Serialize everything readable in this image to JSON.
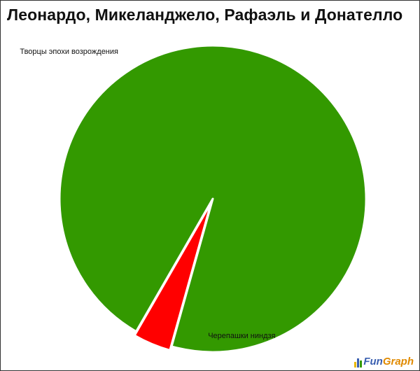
{
  "chart_data": {
    "type": "pie",
    "title": "Леонардо, Микеланджело, Рафаэль и Донателло",
    "slices": [
      {
        "label": "Черепашки ниндзя",
        "value": 96,
        "color": "#339900"
      },
      {
        "label": "Творцы эпохи возрождения",
        "value": 4,
        "color": "#ff0000",
        "exploded": true
      }
    ]
  },
  "branding": {
    "part1": "Fun",
    "part2": "Graph"
  }
}
